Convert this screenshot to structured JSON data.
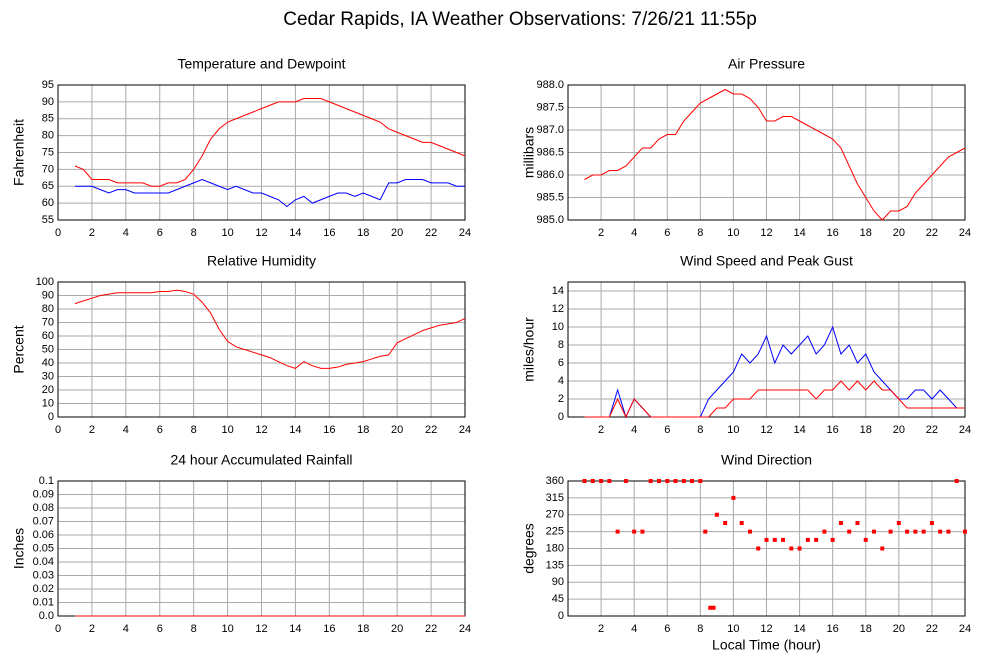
{
  "title": "Cedar Rapids, IA Weather Observations: 7/26/21 11:55p",
  "chart_data": [
    {
      "type": "line",
      "title": "Temperature and Dewpoint",
      "ylabel": "Fahrenheit",
      "xlim": [
        0,
        24
      ],
      "ylim": [
        55,
        95
      ],
      "xticks": [
        0,
        2,
        4,
        6,
        8,
        10,
        12,
        14,
        16,
        18,
        20,
        22,
        24
      ],
      "yticks": [
        55,
        60,
        65,
        70,
        75,
        80,
        85,
        90,
        95
      ],
      "grid": true,
      "x": [
        1,
        1.5,
        2,
        2.5,
        3,
        3.5,
        4,
        4.5,
        5,
        5.5,
        6,
        6.5,
        7,
        7.5,
        8,
        8.5,
        9,
        9.5,
        10,
        10.5,
        11,
        11.5,
        12,
        12.5,
        13,
        13.5,
        14,
        14.5,
        15,
        15.5,
        16,
        16.5,
        17,
        17.5,
        18,
        18.5,
        19,
        19.5,
        20,
        20.5,
        21,
        21.5,
        22,
        22.5,
        23,
        23.5,
        24
      ],
      "series": [
        {
          "color": "#ff0000",
          "values": [
            71,
            70,
            67,
            67,
            67,
            66,
            66,
            66,
            66,
            65,
            65,
            66,
            66,
            67,
            70,
            74,
            79,
            82,
            84,
            85,
            86,
            87,
            88,
            89,
            90,
            90,
            90,
            91,
            91,
            91,
            90,
            89,
            88,
            87,
            86,
            85,
            84,
            82,
            81,
            80,
            79,
            78,
            78,
            77,
            76,
            75,
            74
          ]
        },
        {
          "color": "#0000ff",
          "values": [
            65,
            65,
            65,
            64,
            63,
            64,
            64,
            63,
            63,
            63,
            63,
            63,
            64,
            65,
            66,
            67,
            66,
            65,
            64,
            65,
            64,
            63,
            63,
            62,
            61,
            59,
            61,
            62,
            60,
            61,
            62,
            63,
            63,
            62,
            63,
            62,
            61,
            66,
            66,
            67,
            67,
            67,
            66,
            66,
            66,
            65,
            65
          ]
        }
      ]
    },
    {
      "type": "line",
      "title": "Air Pressure",
      "ylabel": "millibars",
      "xlim": [
        0,
        24
      ],
      "ylim": [
        985,
        988
      ],
      "xticks": [
        2,
        4,
        6,
        8,
        10,
        12,
        14,
        16,
        18,
        20,
        22,
        24
      ],
      "yticks": [
        {
          "value": 985,
          "label": "985.0"
        },
        985.5,
        {
          "value": 986,
          "label": "986.0"
        },
        986.5,
        {
          "value": 987,
          "label": "987.0"
        },
        987.5,
        {
          "value": 988,
          "label": "988.0"
        }
      ],
      "grid": true,
      "x": [
        1,
        1.5,
        2,
        2.5,
        3,
        3.5,
        4,
        4.5,
        5,
        5.5,
        6,
        6.5,
        7,
        7.5,
        8,
        8.5,
        9,
        9.5,
        10,
        10.5,
        11,
        11.5,
        12,
        12.5,
        13,
        13.5,
        14,
        14.5,
        15,
        15.5,
        16,
        16.5,
        17,
        17.5,
        18,
        18.5,
        19,
        19.5,
        20,
        20.5,
        21,
        21.5,
        22,
        22.5,
        23,
        23.5,
        24
      ],
      "series": [
        {
          "color": "#ff0000",
          "values": [
            985.9,
            986.0,
            986.0,
            986.1,
            986.1,
            986.2,
            986.4,
            986.6,
            986.6,
            986.8,
            986.9,
            986.9,
            987.2,
            987.4,
            987.6,
            987.7,
            987.8,
            987.9,
            987.8,
            987.8,
            987.7,
            987.5,
            987.2,
            987.2,
            987.3,
            987.3,
            987.2,
            987.1,
            987.0,
            986.9,
            986.8,
            986.6,
            986.2,
            985.8,
            985.5,
            985.2,
            985.0,
            985.2,
            985.2,
            985.3,
            985.6,
            985.8,
            986.0,
            986.2,
            986.4,
            986.5,
            986.6
          ]
        }
      ]
    },
    {
      "type": "line",
      "title": "Relative Humidity",
      "ylabel": "Percent",
      "xlim": [
        0,
        24
      ],
      "ylim": [
        0,
        100
      ],
      "xticks": [
        0,
        2,
        4,
        6,
        8,
        10,
        12,
        14,
        16,
        18,
        20,
        22,
        24
      ],
      "yticks": [
        0,
        10,
        20,
        30,
        40,
        50,
        60,
        70,
        80,
        90,
        100
      ],
      "grid": true,
      "x": [
        1,
        1.5,
        2,
        2.5,
        3,
        3.5,
        4,
        4.5,
        5,
        5.5,
        6,
        6.5,
        7,
        7.5,
        8,
        8.5,
        9,
        9.5,
        10,
        10.5,
        11,
        11.5,
        12,
        12.5,
        13,
        13.5,
        14,
        14.5,
        15,
        15.5,
        16,
        16.5,
        17,
        17.5,
        18,
        18.5,
        19,
        19.5,
        20,
        20.5,
        21,
        21.5,
        22,
        22.5,
        23,
        23.5,
        24
      ],
      "series": [
        {
          "color": "#ff0000",
          "values": [
            84,
            86,
            88,
            90,
            91,
            92,
            92,
            92,
            92,
            92,
            93,
            93,
            94,
            93,
            91,
            85,
            77,
            65,
            56,
            52,
            50,
            48,
            46,
            44,
            41,
            38,
            36,
            41,
            38,
            36,
            36,
            37,
            39,
            40,
            41,
            43,
            45,
            46,
            55,
            58,
            61,
            64,
            66,
            68,
            69,
            70,
            73
          ]
        }
      ]
    },
    {
      "type": "line",
      "title": "Wind Speed and Peak Gust",
      "ylabel": "miles/hour",
      "xlim": [
        0,
        24
      ],
      "ylim": [
        0,
        15
      ],
      "xticks": [
        2,
        4,
        6,
        8,
        10,
        12,
        14,
        16,
        18,
        20,
        22,
        24
      ],
      "yticks": [
        0,
        2,
        4,
        6,
        8,
        10,
        12,
        14
      ],
      "grid": true,
      "x": [
        1,
        1.5,
        2,
        2.5,
        3,
        3.5,
        4,
        4.5,
        5,
        5.5,
        6,
        6.5,
        7,
        7.5,
        8,
        8.5,
        9,
        9.5,
        10,
        10.5,
        11,
        11.5,
        12,
        12.5,
        13,
        13.5,
        14,
        14.5,
        15,
        15.5,
        16,
        16.5,
        17,
        17.5,
        18,
        18.5,
        19,
        19.5,
        20,
        20.5,
        21,
        21.5,
        22,
        22.5,
        23,
        23.5,
        24
      ],
      "series": [
        {
          "color": "#0000ff",
          "values": [
            0,
            0,
            0,
            0,
            3,
            0,
            2,
            1,
            0,
            0,
            0,
            0,
            0,
            0,
            0,
            2,
            3,
            4,
            5,
            7,
            6,
            7,
            9,
            6,
            8,
            7,
            8,
            9,
            7,
            8,
            10,
            7,
            8,
            6,
            7,
            5,
            4,
            3,
            2,
            2,
            3,
            3,
            2,
            3,
            2,
            1,
            1
          ]
        },
        {
          "color": "#ff0000",
          "values": [
            0,
            0,
            0,
            0,
            2,
            0,
            2,
            1,
            0,
            0,
            0,
            0,
            0,
            0,
            0,
            0,
            1,
            1,
            2,
            2,
            2,
            3,
            3,
            3,
            3,
            3,
            3,
            3,
            2,
            3,
            3,
            4,
            3,
            4,
            3,
            4,
            3,
            3,
            2,
            1,
            1,
            1,
            1,
            1,
            1,
            1,
            1
          ]
        }
      ]
    },
    {
      "type": "line",
      "title": "24 hour Accumulated Rainfall",
      "ylabel": "Inches",
      "xlim": [
        0,
        24
      ],
      "ylim": [
        0,
        0.1
      ],
      "xticks": [
        0,
        2,
        4,
        6,
        8,
        10,
        12,
        14,
        16,
        18,
        20,
        22,
        24
      ],
      "yticks": [
        {
          "value": 0,
          "label": "0.0"
        },
        0.01,
        0.02,
        0.03,
        0.04,
        0.05,
        0.06,
        0.07,
        0.08,
        0.09,
        0.1
      ],
      "grid": true,
      "x": [
        1,
        24
      ],
      "series": [
        {
          "color": "#ff0000",
          "values": [
            0,
            0
          ]
        }
      ]
    },
    {
      "type": "scatter",
      "title": "Wind Direction",
      "ylabel": "degrees",
      "xlabel": "Local Time (hour)",
      "xlim": [
        0,
        24
      ],
      "ylim": [
        0,
        360
      ],
      "xticks": [
        2,
        4,
        6,
        8,
        10,
        12,
        14,
        16,
        18,
        20,
        22,
        24
      ],
      "yticks": [
        0,
        45,
        90,
        135,
        180,
        225,
        270,
        315,
        360
      ],
      "grid": true,
      "x": [
        1,
        1.5,
        2,
        2.5,
        3,
        3.5,
        4,
        4.5,
        5,
        5.5,
        6,
        6.5,
        7,
        7.5,
        8,
        8.3,
        8.6,
        8.8,
        9,
        9.5,
        10,
        10.5,
        11,
        11.5,
        12,
        12.5,
        13,
        13.5,
        14,
        14.5,
        15,
        15.5,
        16,
        16.5,
        17,
        17.5,
        18,
        18.5,
        19,
        19.5,
        20,
        20.5,
        21,
        21.5,
        22,
        22.5,
        23,
        23.5,
        24
      ],
      "series": [
        {
          "color": "#ff0000",
          "values": [
            360,
            360,
            360,
            360,
            225,
            360,
            225,
            225,
            360,
            360,
            360,
            360,
            360,
            360,
            360,
            225,
            22,
            22,
            270,
            248,
            315,
            248,
            225,
            180,
            203,
            203,
            203,
            180,
            180,
            203,
            203,
            225,
            203,
            248,
            225,
            248,
            203,
            225,
            180,
            225,
            248,
            225,
            225,
            225,
            248,
            225,
            225,
            360,
            225
          ]
        }
      ]
    }
  ]
}
